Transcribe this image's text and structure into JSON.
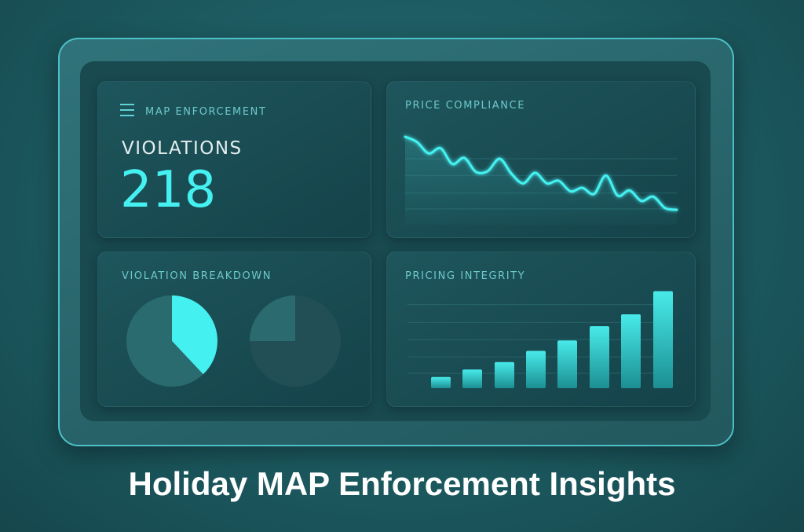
{
  "page_title": "Holiday MAP Enforcement Insights",
  "colors": {
    "accent": "#45f0f0",
    "label": "#6cc9cb",
    "card": "#1b4c53",
    "frame_border": "#4cc0c6"
  },
  "summary_card": {
    "icon": "menu-icon",
    "heading": "MAP ENFORCEMENT",
    "metric_label": "VIOLATIONS",
    "metric_value": "218"
  },
  "chart_data": [
    {
      "type": "line",
      "title": "PRICE COMPLIANCE",
      "ylim": [
        0,
        100
      ],
      "grid": true,
      "values": [
        100,
        94,
        81,
        87,
        69,
        76,
        60,
        61,
        75,
        58,
        47,
        59,
        47,
        50,
        38,
        42,
        35,
        56,
        33,
        39,
        27,
        32,
        19,
        17
      ]
    },
    {
      "type": "pie",
      "title": "VIOLATION BREAKDOWN",
      "pies": [
        {
          "slices": [
            38,
            62
          ]
        },
        {
          "slices": [
            25,
            75
          ]
        }
      ]
    },
    {
      "type": "bar",
      "title": "PRICING INTEGRITY",
      "grid": true,
      "ylim": [
        0,
        140
      ],
      "values": [
        15,
        25,
        35,
        50,
        64,
        83,
        99,
        130
      ]
    }
  ]
}
